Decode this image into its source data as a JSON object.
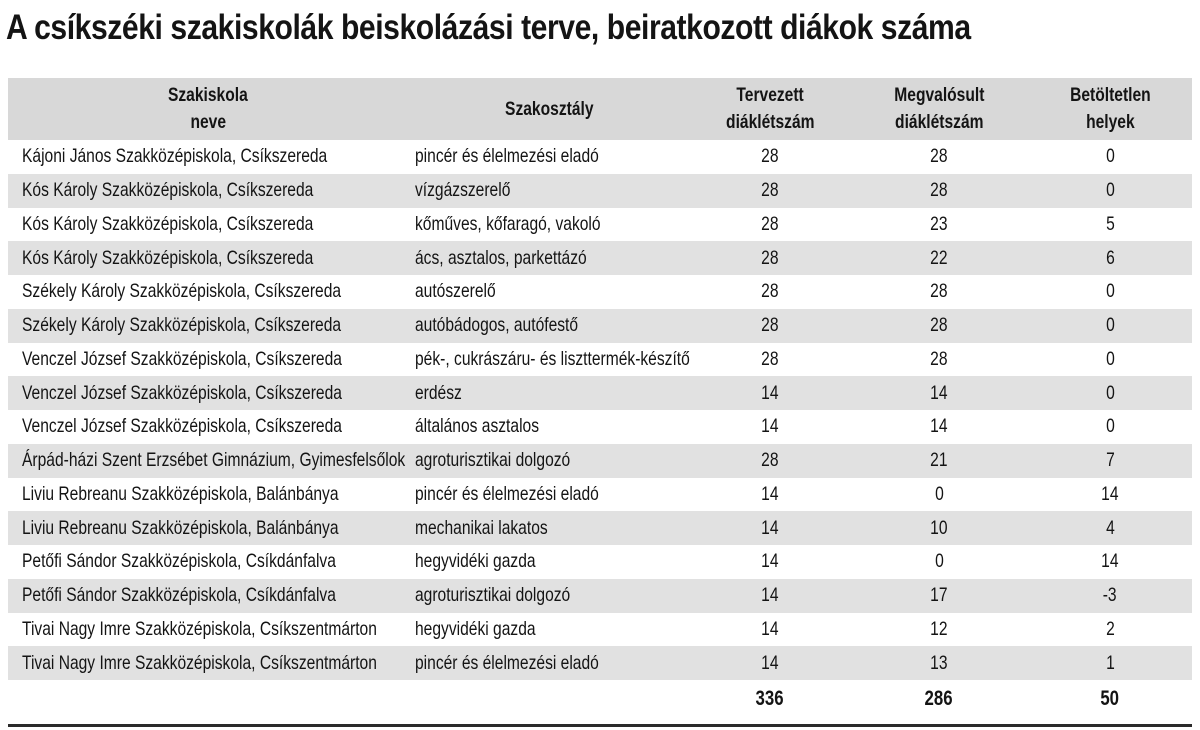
{
  "colors": {
    "header_bg": "#d8d8d8",
    "stripe_bg": "#e1e1e1",
    "shaded_cell_bg": "#bcbcbc",
    "text": "#141414",
    "bottom_rule": "#2a2a2a",
    "page_bg": "#ffffff"
  },
  "chart_data": {
    "type": "table",
    "title": "A csíkszéki szakiskolák beiskolázási terve, beiratkozott diákok száma",
    "columns": [
      {
        "line1": "Szakiskola",
        "line2": "neve"
      },
      {
        "line1": "Szakosztály",
        "line2": ""
      },
      {
        "line1": "Tervezett",
        "line2": "diáklétszám"
      },
      {
        "line1": "Megvalósult",
        "line2": "diáklétszám"
      },
      {
        "line1": "Betöltetlen",
        "line2": "helyek"
      }
    ],
    "rows": [
      {
        "school": "Kájoni János Szakközépiskola, Csíkszereda",
        "department": "pincér és élelmezési eladó",
        "planned": 28,
        "realized": 28,
        "unfilled": 0
      },
      {
        "school": "Kós Károly Szakközépiskola, Csíkszereda",
        "department": "vízgázszerelő",
        "planned": 28,
        "realized": 28,
        "unfilled": 0
      },
      {
        "school": "Kós Károly Szakközépiskola, Csíkszereda",
        "department": "kőműves, kőfaragó, vakoló",
        "planned": 28,
        "realized": 23,
        "unfilled": 5
      },
      {
        "school": "Kós Károly Szakközépiskola, Csíkszereda",
        "department": "ács, asztalos, parkettázó",
        "planned": 28,
        "realized": 22,
        "unfilled": 6
      },
      {
        "school": "Székely Károly Szakközépiskola, Csíkszereda",
        "department": "autószerelő",
        "planned": 28,
        "realized": 28,
        "unfilled": 0
      },
      {
        "school": "Székely Károly Szakközépiskola, Csíkszereda",
        "department": "autóbádogos, autófestő",
        "planned": 28,
        "realized": 28,
        "unfilled": 0
      },
      {
        "school": "Venczel József Szakközépiskola, Csíkszereda",
        "department": "pék-, cukrászáru- és liszttermék-készítő",
        "planned": 28,
        "realized": 28,
        "unfilled": 0
      },
      {
        "school": "Venczel József Szakközépiskola, Csíkszereda",
        "department": "erdész",
        "planned": 14,
        "realized": 14,
        "unfilled": 0
      },
      {
        "school": "Venczel József Szakközépiskola, Csíkszereda",
        "department": "általános asztalos",
        "planned": 14,
        "realized": 14,
        "unfilled": 0
      },
      {
        "school": "Árpád-házi Szent Erzsébet Gimnázium, Gyimesfelsőlok",
        "department": "agroturisztikai dolgozó",
        "planned": 28,
        "realized": 21,
        "unfilled": 7
      },
      {
        "school": "Liviu Rebreanu Szakközépiskola, Balánbánya",
        "department": "pincér és élelmezési eladó",
        "planned": 14,
        "realized": 0,
        "unfilled": 14
      },
      {
        "school": "Liviu Rebreanu Szakközépiskola, Balánbánya",
        "department": "mechanikai lakatos",
        "planned": 14,
        "realized": 10,
        "unfilled": 4
      },
      {
        "school": "Petőfi Sándor Szakközépiskola, Csíkdánfalva",
        "department": "hegyvidéki gazda",
        "planned": 14,
        "realized": 0,
        "unfilled": 14
      },
      {
        "school": "Petőfi Sándor Szakközépiskola, Csíkdánfalva",
        "department": "agroturisztikai dolgozó",
        "planned": 14,
        "realized": 17,
        "unfilled": -3
      },
      {
        "school": "Tivai Nagy Imre Szakközépiskola, Csíkszentmárton",
        "department": "hegyvidéki gazda",
        "planned": 14,
        "realized": 12,
        "unfilled": 2
      },
      {
        "school": "Tivai Nagy Imre Szakközépiskola, Csíkszentmárton",
        "department": "pincér és élelmezési eladó",
        "planned": 14,
        "realized": 13,
        "unfilled": 1
      }
    ],
    "totals": {
      "planned": 336,
      "realized": 286,
      "unfilled": 50
    },
    "shaded_school_cell_row_index": 11,
    "layout_hints": {
      "striping": "even rows shaded",
      "numeric_columns_centered": true
    }
  }
}
